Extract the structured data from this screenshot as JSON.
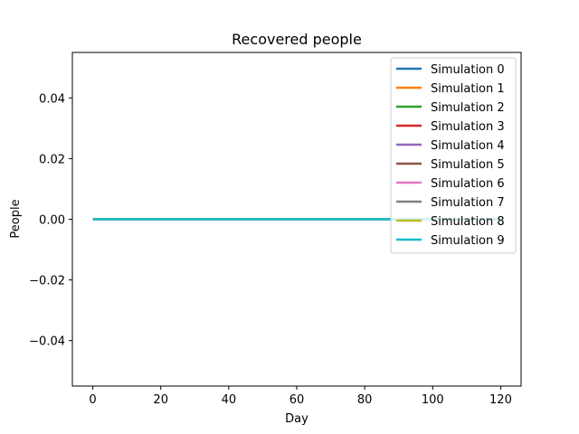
{
  "chart_data": {
    "type": "line",
    "title": "Recovered people",
    "xlabel": "Day",
    "ylabel": "People",
    "xlim": [
      -6,
      126
    ],
    "ylim": [
      -0.055,
      0.055
    ],
    "x_ticks": [
      0,
      20,
      40,
      60,
      80,
      100,
      120
    ],
    "x_tick_labels": [
      "0",
      "20",
      "40",
      "60",
      "80",
      "100",
      "120"
    ],
    "y_ticks": [
      -0.04,
      -0.02,
      0.0,
      0.02,
      0.04
    ],
    "y_tick_labels": [
      "−0.04",
      "−0.02",
      "0.00",
      "0.02",
      "0.04"
    ],
    "grid": false,
    "legend_position": "top-right",
    "x": [
      0,
      120
    ],
    "series": [
      {
        "name": "Simulation 0",
        "color": "#1f77b4",
        "values": [
          0,
          0
        ]
      },
      {
        "name": "Simulation 1",
        "color": "#ff7f0e",
        "values": [
          0,
          0
        ]
      },
      {
        "name": "Simulation 2",
        "color": "#2ca02c",
        "values": [
          0,
          0
        ]
      },
      {
        "name": "Simulation 3",
        "color": "#d62728",
        "values": [
          0,
          0
        ]
      },
      {
        "name": "Simulation 4",
        "color": "#9467bd",
        "values": [
          0,
          0
        ]
      },
      {
        "name": "Simulation 5",
        "color": "#8c564b",
        "values": [
          0,
          0
        ]
      },
      {
        "name": "Simulation 6",
        "color": "#e377c2",
        "values": [
          0,
          0
        ]
      },
      {
        "name": "Simulation 7",
        "color": "#7f7f7f",
        "values": [
          0,
          0
        ]
      },
      {
        "name": "Simulation 8",
        "color": "#bcbd22",
        "values": [
          0,
          0
        ]
      },
      {
        "name": "Simulation 9",
        "color": "#17becf",
        "values": [
          0,
          0
        ]
      }
    ]
  }
}
